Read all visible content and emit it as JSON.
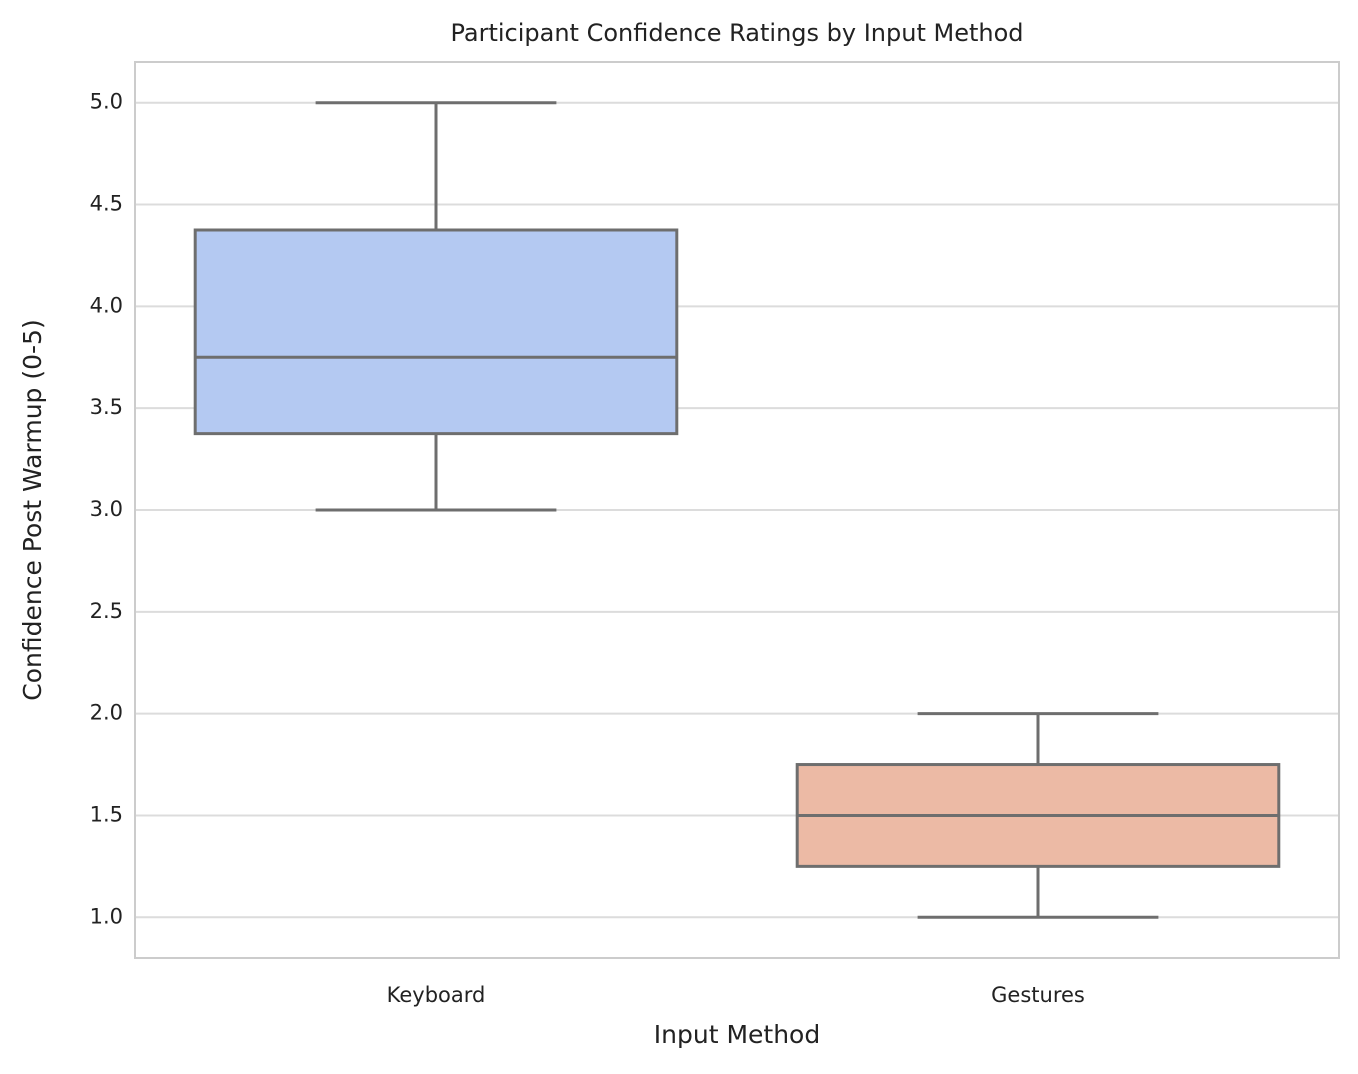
{
  "chart_data": {
    "type": "box",
    "title": "Participant Confidence Ratings by Input Method",
    "x_label": "Input Method",
    "y_label": "Confidence Post Warmup (0-5)",
    "categories": [
      "Keyboard",
      "Gestures"
    ],
    "boxes": [
      {
        "min": 3.0,
        "q1": 3.375,
        "median": 3.75,
        "q3": 4.375,
        "max": 5.0,
        "color": "#b4c9f2"
      },
      {
        "min": 1.0,
        "q1": 1.25,
        "median": 1.5,
        "q3": 1.75,
        "max": 2.0,
        "color": "#ecbaa5"
      }
    ],
    "ylim": [
      0.8,
      5.2
    ],
    "yticks": [
      {
        "value": 1,
        "label": "1.0"
      },
      1.5,
      {
        "value": 2,
        "label": "2.0"
      },
      2.5,
      {
        "value": 3,
        "label": "3.0"
      },
      3.5,
      {
        "value": 4,
        "label": "4.0"
      },
      4.5,
      {
        "value": 5,
        "label": "5.0"
      }
    ],
    "grid": true
  }
}
